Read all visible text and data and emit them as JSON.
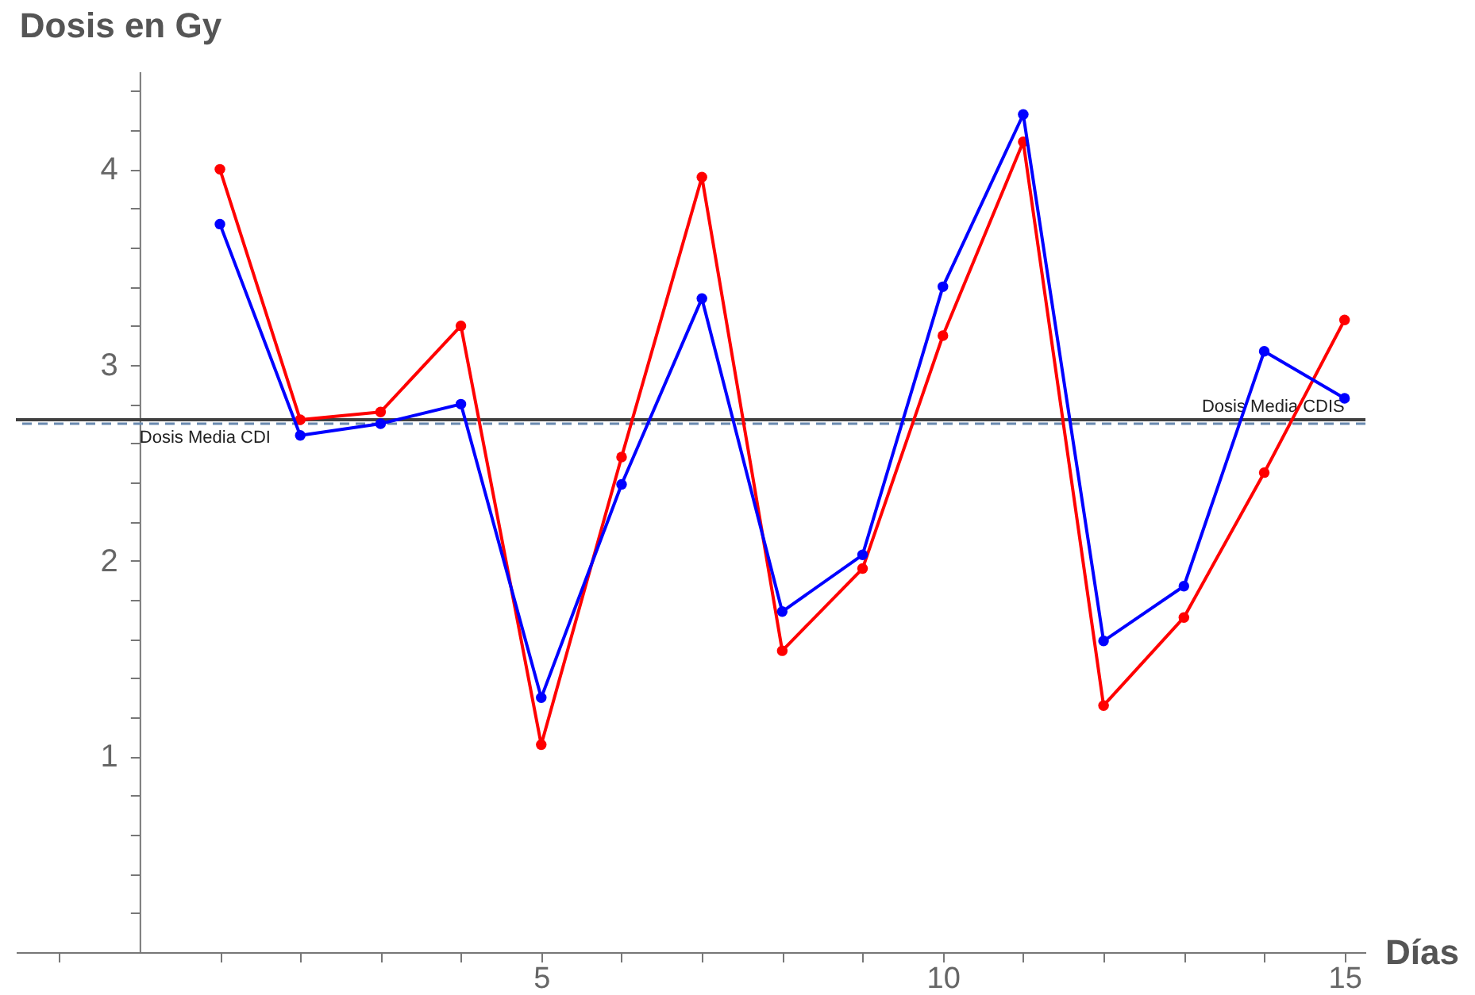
{
  "chart_data": {
    "type": "line",
    "xlabel": "Días",
    "ylabel": "Dosis en Gy",
    "x": [
      1,
      2,
      3,
      4,
      5,
      6,
      7,
      8,
      9,
      10,
      11,
      12,
      13,
      14,
      15
    ],
    "series": [
      {
        "color": "#ff0000",
        "values": [
          4.0,
          2.72,
          2.76,
          3.2,
          1.06,
          2.53,
          3.96,
          1.54,
          1.96,
          3.15,
          4.14,
          1.26,
          1.71,
          2.45,
          3.23
        ]
      },
      {
        "color": "#0000ff",
        "values": [
          3.72,
          2.64,
          2.7,
          2.8,
          1.3,
          2.39,
          3.34,
          1.74,
          2.03,
          3.4,
          4.28,
          1.59,
          1.87,
          3.07,
          2.83
        ]
      }
    ],
    "xlim": [
      -1.54,
      15.26
    ],
    "ylim": [
      0,
      4.5
    ],
    "xticks": [
      {
        "value": -1,
        "label": null
      },
      {
        "value": 1,
        "label": null
      },
      {
        "value": 2,
        "label": null
      },
      {
        "value": 3,
        "label": null
      },
      {
        "value": 4,
        "label": null
      },
      5,
      {
        "value": 6,
        "label": null
      },
      {
        "value": 7,
        "label": null
      },
      {
        "value": 8,
        "label": null
      },
      {
        "value": 9,
        "label": null
      },
      10,
      {
        "value": 11,
        "label": null
      },
      {
        "value": 12,
        "label": null
      },
      {
        "value": 13,
        "label": null
      },
      {
        "value": 14,
        "label": null
      },
      15
    ],
    "yticks": [
      {
        "value": 0.2,
        "label": null
      },
      {
        "value": 0.4,
        "label": null
      },
      {
        "value": 0.6,
        "label": null
      },
      {
        "value": 0.8,
        "label": null
      },
      1,
      {
        "value": 1.2,
        "label": null
      },
      {
        "value": 1.4,
        "label": null
      },
      {
        "value": 1.6,
        "label": null
      },
      {
        "value": 1.8,
        "label": null
      },
      2,
      {
        "value": 2.2,
        "label": null
      },
      {
        "value": 2.4,
        "label": null
      },
      {
        "value": 2.6,
        "label": null
      },
      {
        "value": 2.8,
        "label": null
      },
      3,
      {
        "value": 3.2,
        "label": null
      },
      {
        "value": 3.4,
        "label": null
      },
      {
        "value": 3.6,
        "label": null
      },
      {
        "value": 3.8,
        "label": null
      },
      4,
      {
        "value": 4.2,
        "label": null
      },
      {
        "value": 4.4,
        "label": null
      }
    ],
    "ref_lines": [
      {
        "axis": "y",
        "value": 2.72,
        "label": "Dosis Media CDIS",
        "color": "#404040",
        "line_style": "solid"
      },
      {
        "axis": "y",
        "value": 2.7,
        "label": "Dosis Media CDI",
        "color": "#6a8ab0",
        "line_style": "dashed"
      }
    ],
    "marker": "circle",
    "line_style": "solid"
  }
}
